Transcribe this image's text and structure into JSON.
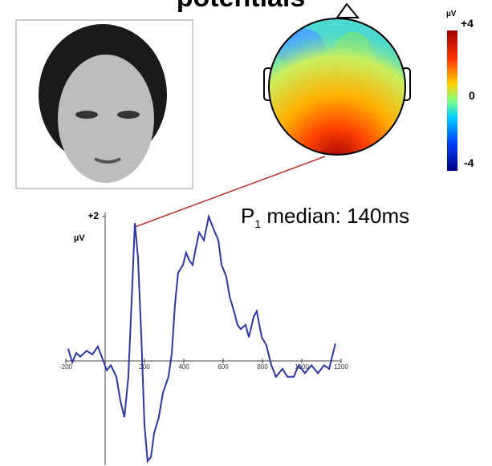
{
  "chart_data": {
    "type": "line",
    "title": "potentials",
    "annotation": {
      "main": "P",
      "sub": "1",
      "rest": " median: 140ms"
    },
    "y_unit": "µV",
    "colorbar": {
      "unit": "µV",
      "labels": [
        "+4",
        "0",
        "-4"
      ]
    },
    "x": [
      -188,
      -167,
      -147,
      -127,
      -94,
      -65,
      -37,
      -12,
      8,
      29,
      57,
      78,
      98,
      118,
      139,
      151,
      167,
      184,
      200,
      216,
      233,
      249,
      273,
      294,
      322,
      339,
      355,
      371,
      396,
      412,
      429,
      445,
      461,
      478,
      502,
      527,
      551,
      576,
      592,
      616,
      633,
      657,
      673,
      690,
      714,
      731,
      755,
      771,
      796,
      820,
      845,
      869,
      902,
      927,
      959,
      984,
      1016,
      1049,
      1082,
      1114,
      1139,
      1171
    ],
    "values": [
      0.17,
      -0.02,
      0.11,
      0.06,
      0.14,
      0.09,
      0.2,
      0.02,
      -0.13,
      -0.06,
      -0.22,
      -0.56,
      -0.78,
      -0.22,
      1.11,
      1.91,
      1.44,
      0.33,
      -0.89,
      -1.39,
      -1.33,
      -1.0,
      -0.78,
      -0.44,
      -0.22,
      0.11,
      0.78,
      1.22,
      1.33,
      1.5,
      1.39,
      1.33,
      1.56,
      1.78,
      1.67,
      2.0,
      1.83,
      1.67,
      1.33,
      1.17,
      0.89,
      0.67,
      0.5,
      0.44,
      0.5,
      0.33,
      0.61,
      0.69,
      0.33,
      0.22,
      -0.06,
      -0.22,
      -0.11,
      -0.22,
      -0.22,
      -0.06,
      -0.17,
      -0.06,
      -0.17,
      -0.06,
      -0.11,
      0.24
    ],
    "color": "#2b36a8",
    "xlim": [
      -200,
      1200
    ],
    "ylim": [
      -1.4,
      2
    ],
    "xticks": [
      -200,
      200,
      400,
      600,
      800,
      1000,
      1200
    ],
    "yticks": [
      {
        "value": 2,
        "label": "+2"
      }
    ]
  }
}
